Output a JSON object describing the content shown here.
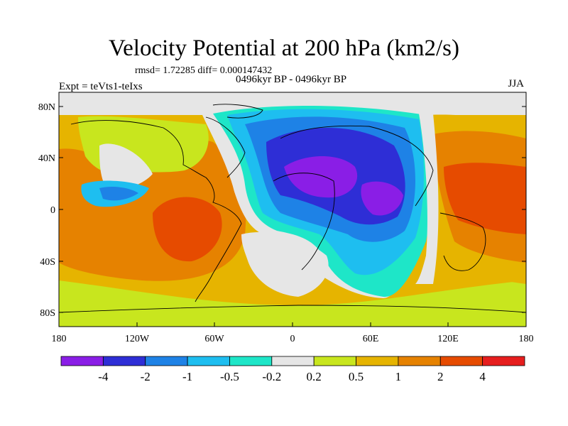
{
  "title": "Velocity Potential at 200 hPa (km2/s)",
  "stats_line": "rmsd= 1.72285 diff= 0.000147432",
  "period": "0496kyr BP - 0496kyr BP",
  "expt": "Expt = teVts1-teIxs",
  "season": "JJA",
  "lat_labels": [
    "80N",
    "40N",
    "0",
    "40S",
    "80S"
  ],
  "lon_labels": [
    "180",
    "120W",
    "60W",
    "0",
    "60E",
    "120E",
    "180"
  ],
  "colorbar": {
    "labels": [
      "-4",
      "-2",
      "-1",
      "-0.5",
      "-0.2",
      "0.2",
      "0.5",
      "1",
      "2",
      "4"
    ],
    "colors": [
      "#8a1ee6",
      "#2e2ed6",
      "#1e82e6",
      "#1ebef0",
      "#1ee6c8",
      "#e6e6e6",
      "#c8e61e",
      "#e6b400",
      "#e68200",
      "#e64b00",
      "#e61e1e"
    ]
  }
}
